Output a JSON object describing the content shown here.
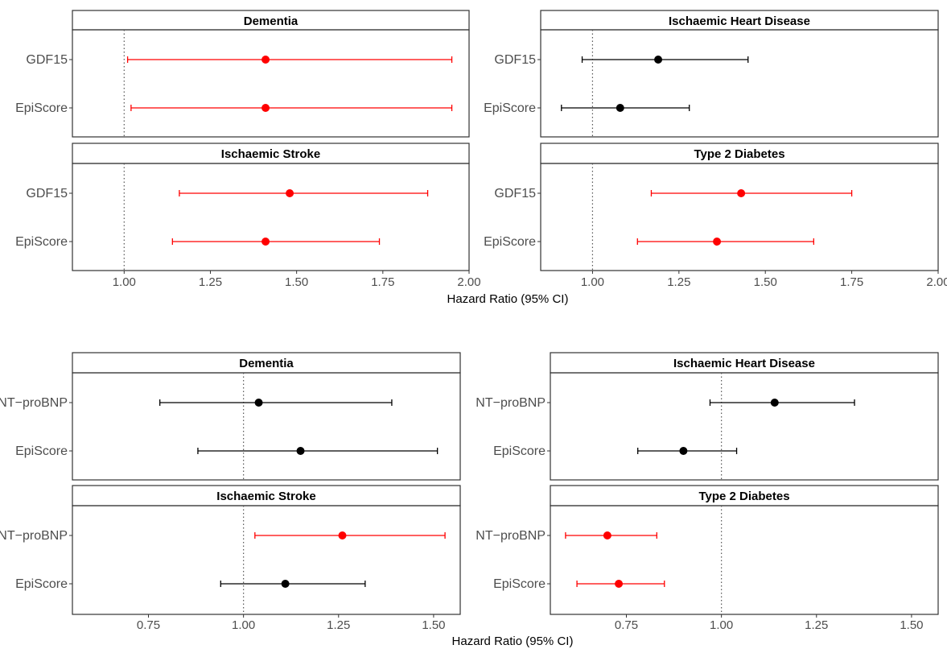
{
  "chart_data": [
    {
      "type": "forest",
      "xlabel": "Hazard Ratio (95% CI)",
      "xlim": [
        0.85,
        2.0
      ],
      "xticks": [
        "1.00",
        "1.25",
        "1.50",
        "1.75",
        "2.00"
      ],
      "reference_line": 1.0,
      "facets": [
        {
          "title": "Dementia",
          "rows": [
            {
              "label": "GDF15",
              "hr": 1.41,
              "lower": 1.01,
              "upper": 1.95,
              "significant": true
            },
            {
              "label": "EpiScore",
              "hr": 1.41,
              "lower": 1.02,
              "upper": 1.95,
              "significant": true
            }
          ]
        },
        {
          "title": "Ischaemic Heart Disease",
          "rows": [
            {
              "label": "GDF15",
              "hr": 1.19,
              "lower": 0.97,
              "upper": 1.45,
              "significant": false
            },
            {
              "label": "EpiScore",
              "hr": 1.08,
              "lower": 0.91,
              "upper": 1.28,
              "significant": false
            }
          ]
        },
        {
          "title": "Ischaemic Stroke",
          "rows": [
            {
              "label": "GDF15",
              "hr": 1.48,
              "lower": 1.16,
              "upper": 1.88,
              "significant": true
            },
            {
              "label": "EpiScore",
              "hr": 1.41,
              "lower": 1.14,
              "upper": 1.74,
              "significant": true
            }
          ]
        },
        {
          "title": "Type 2 Diabetes",
          "rows": [
            {
              "label": "GDF15",
              "hr": 1.43,
              "lower": 1.17,
              "upper": 1.75,
              "significant": true
            },
            {
              "label": "EpiScore",
              "hr": 1.36,
              "lower": 1.13,
              "upper": 1.64,
              "significant": true
            }
          ]
        }
      ]
    },
    {
      "type": "forest",
      "xlabel": "Hazard Ratio (95% CI)",
      "xlim": [
        0.55,
        1.57
      ],
      "xticks": [
        "0.75",
        "1.00",
        "1.25",
        "1.50"
      ],
      "reference_line": 1.0,
      "facets": [
        {
          "title": "Dementia",
          "rows": [
            {
              "label": "NT−proBNP",
              "hr": 1.04,
              "lower": 0.78,
              "upper": 1.39,
              "significant": false
            },
            {
              "label": "EpiScore",
              "hr": 1.15,
              "lower": 0.88,
              "upper": 1.51,
              "significant": false
            }
          ]
        },
        {
          "title": "Ischaemic Heart Disease",
          "rows": [
            {
              "label": "NT−proBNP",
              "hr": 1.14,
              "lower": 0.97,
              "upper": 1.35,
              "significant": false
            },
            {
              "label": "EpiScore",
              "hr": 0.9,
              "lower": 0.78,
              "upper": 1.04,
              "significant": false
            }
          ]
        },
        {
          "title": "Ischaemic Stroke",
          "rows": [
            {
              "label": "NT−proBNP",
              "hr": 1.26,
              "lower": 1.03,
              "upper": 1.53,
              "significant": true
            },
            {
              "label": "EpiScore",
              "hr": 1.11,
              "lower": 0.94,
              "upper": 1.32,
              "significant": false
            }
          ]
        },
        {
          "title": "Type 2 Diabetes",
          "rows": [
            {
              "label": "NT−proBNP",
              "hr": 0.7,
              "lower": 0.59,
              "upper": 0.83,
              "significant": true
            },
            {
              "label": "EpiScore",
              "hr": 0.73,
              "lower": 0.62,
              "upper": 0.85,
              "significant": true
            }
          ]
        }
      ]
    }
  ],
  "colors": {
    "significant": "#ff0000",
    "non_significant": "#000000",
    "strip_fill": "#ffffff",
    "reference_line": "#555555"
  }
}
